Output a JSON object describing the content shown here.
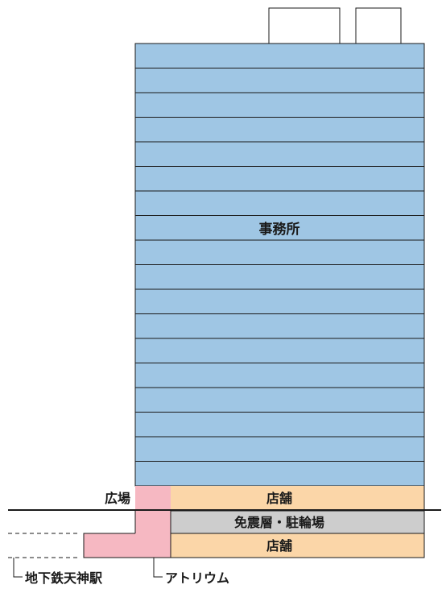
{
  "labels": {
    "office": "事務所",
    "plaza": "広場",
    "retail_upper": "店舗",
    "seismic_bicycle": "免震層・駐輪場",
    "retail_lower": "店舗",
    "subway_station": "地下鉄天神駅",
    "atrium": "アトリウム"
  },
  "colors": {
    "office": "#9fc6e4",
    "retail": "#fbd6a8",
    "atrium": "#f6b8c2",
    "seismic": "#cdcdcd",
    "line": "#1a1a1a"
  }
}
